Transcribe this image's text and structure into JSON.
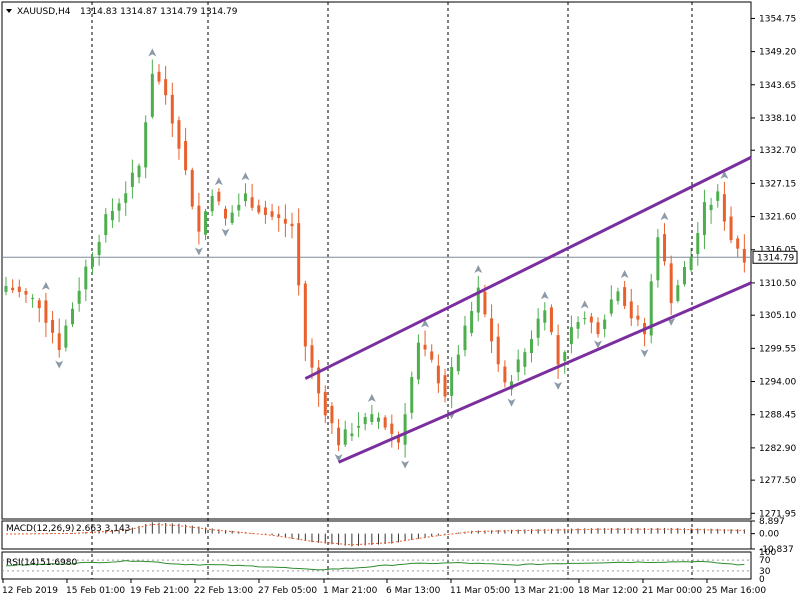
{
  "header": {
    "arrow_icon": "triangle-down-icon",
    "symbol": "XAUUSD,H4",
    "ohlc": "1314.83 1314.87 1314.79 1314.79"
  },
  "colors": {
    "bull": "#4cae4c",
    "bear": "#e8602c",
    "channel": "#7b2e9e",
    "fractal": "#8c9aa8",
    "grid": "#000000",
    "macd": "#333333",
    "rsi": "#2e8b2e"
  },
  "chart_data": [
    {
      "type": "candlestick",
      "title": "XAUUSD,H4",
      "yticks": [
        "1354.75",
        "1349.20",
        "1343.65",
        "1338.10",
        "1332.70",
        "1327.15",
        "1321.60",
        "1316.05",
        "1310.50",
        "1305.10",
        "1299.55",
        "1294.00",
        "1288.45",
        "1282.90",
        "1277.50",
        "1271.95"
      ],
      "ylim": [
        1271.0,
        1357.5
      ],
      "current_price": "1314.79",
      "xticks": [
        "12 Feb 2019",
        "15 Feb 01:00",
        "19 Feb 21:00",
        "22 Feb 13:00",
        "27 Feb 05:00",
        "1 Mar 21:00",
        "6 Mar 13:00",
        "11 Mar 05:00",
        "13 Mar 21:00",
        "18 Mar 12:00",
        "21 Mar 00:00",
        "25 Mar 16:00"
      ],
      "separator_dates": [
        "15 Feb",
        "20 Feb",
        "25 Feb",
        "1 Mar",
        "6 Mar",
        "11 Mar",
        "15 Mar",
        "20 Mar"
      ],
      "channel": {
        "upper": [
          [
            45,
            1294.5
          ],
          [
            143,
            1331.5
          ]
        ],
        "lower": [
          [
            50,
            1280.5
          ],
          [
            143,
            1310.5
          ]
        ]
      },
      "anchors": [
        [
          0,
          1310
        ],
        [
          5,
          1307
        ],
        [
          8,
          1300
        ],
        [
          12,
          1313
        ],
        [
          15,
          1321
        ],
        [
          18,
          1326
        ],
        [
          20,
          1330
        ],
        [
          22,
          1346
        ],
        [
          24,
          1342
        ],
        [
          26,
          1334
        ],
        [
          29,
          1319
        ],
        [
          31,
          1326
        ],
        [
          33,
          1321
        ],
        [
          36,
          1325
        ],
        [
          39,
          1322
        ],
        [
          41,
          1321
        ],
        [
          43,
          1320
        ],
        [
          45,
          1300
        ],
        [
          47,
          1292
        ],
        [
          50,
          1284
        ],
        [
          53,
          1287
        ],
        [
          56,
          1288
        ],
        [
          59,
          1284
        ],
        [
          62,
          1300
        ],
        [
          64,
          1297
        ],
        [
          66,
          1292
        ],
        [
          68,
          1299
        ],
        [
          71,
          1309
        ],
        [
          73,
          1301
        ],
        [
          75,
          1293
        ],
        [
          78,
          1299
        ],
        [
          81,
          1307
        ],
        [
          83,
          1297
        ],
        [
          86,
          1305
        ],
        [
          89,
          1303
        ],
        [
          92,
          1310
        ],
        [
          94,
          1305
        ],
        [
          96,
          1302
        ],
        [
          98,
          1319
        ],
        [
          100,
          1308
        ],
        [
          103,
          1315
        ],
        [
          105,
          1323
        ],
        [
          107,
          1325
        ],
        [
          109,
          1318
        ],
        [
          111,
          1315
        ]
      ],
      "bars": 112
    },
    {
      "type": "bar",
      "title": "MACD(12,26,9)",
      "values_text": "2.663 3.143",
      "yticks": [
        "8.897",
        "0.00",
        "-10.837"
      ],
      "ylim": [
        -10.837,
        8.897
      ],
      "anchors": [
        [
          0,
          0
        ],
        [
          10,
          0.5
        ],
        [
          18,
          3
        ],
        [
          22,
          8
        ],
        [
          26,
          7
        ],
        [
          32,
          3
        ],
        [
          40,
          -1
        ],
        [
          46,
          -6
        ],
        [
          52,
          -9
        ],
        [
          58,
          -7
        ],
        [
          64,
          -2
        ],
        [
          70,
          2
        ],
        [
          78,
          3
        ],
        [
          90,
          4
        ],
        [
          100,
          4
        ],
        [
          111,
          3
        ]
      ]
    },
    {
      "type": "line",
      "title": "RSI(14)",
      "values_text": "51.6980",
      "yticks": [
        "100",
        "70",
        "30",
        "0"
      ],
      "ylim": [
        0,
        100
      ],
      "levels": [
        30,
        70
      ],
      "anchors": [
        [
          0,
          50
        ],
        [
          10,
          58
        ],
        [
          20,
          68
        ],
        [
          26,
          55
        ],
        [
          32,
          52
        ],
        [
          40,
          45
        ],
        [
          46,
          34
        ],
        [
          52,
          40
        ],
        [
          60,
          56
        ],
        [
          68,
          60
        ],
        [
          76,
          52
        ],
        [
          84,
          58
        ],
        [
          92,
          62
        ],
        [
          98,
          63
        ],
        [
          104,
          65
        ],
        [
          111,
          52
        ]
      ]
    }
  ]
}
